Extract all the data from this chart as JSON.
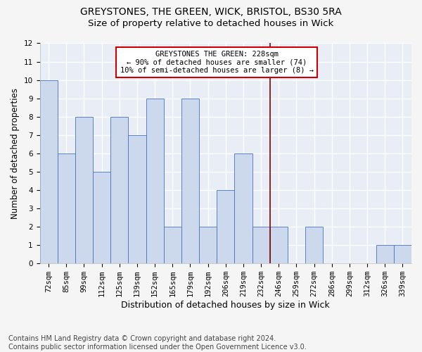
{
  "title1": "GREYSTONES, THE GREEN, WICK, BRISTOL, BS30 5RA",
  "title2": "Size of property relative to detached houses in Wick",
  "xlabel": "Distribution of detached houses by size in Wick",
  "ylabel": "Number of detached properties",
  "categories": [
    "72sqm",
    "85sqm",
    "99sqm",
    "112sqm",
    "125sqm",
    "139sqm",
    "152sqm",
    "165sqm",
    "179sqm",
    "192sqm",
    "206sqm",
    "219sqm",
    "232sqm",
    "246sqm",
    "259sqm",
    "272sqm",
    "286sqm",
    "299sqm",
    "312sqm",
    "326sqm",
    "339sqm"
  ],
  "values": [
    10,
    6,
    8,
    5,
    8,
    7,
    9,
    2,
    9,
    2,
    4,
    6,
    2,
    2,
    0,
    2,
    0,
    0,
    0,
    1,
    1
  ],
  "bar_color": "#ccd9ec",
  "bar_edge_color": "#4472c4",
  "vline_x_index": 12,
  "vline_color": "#7f0000",
  "annotation_text": "GREYSTONES THE GREEN: 228sqm\n← 90% of detached houses are smaller (74)\n10% of semi-detached houses are larger (8) →",
  "annotation_box_color": "#cc0000",
  "ylim": [
    0,
    12
  ],
  "yticks": [
    0,
    1,
    2,
    3,
    4,
    5,
    6,
    7,
    8,
    9,
    10,
    11,
    12
  ],
  "footer": "Contains HM Land Registry data © Crown copyright and database right 2024.\nContains public sector information licensed under the Open Government Licence v3.0.",
  "background_color": "#e8edf6",
  "grid_color": "#ffffff",
  "fig_bg": "#f5f5f5",
  "title1_fontsize": 10,
  "title2_fontsize": 9.5,
  "xlabel_fontsize": 9,
  "ylabel_fontsize": 8.5,
  "tick_fontsize": 7.5,
  "footer_fontsize": 7
}
